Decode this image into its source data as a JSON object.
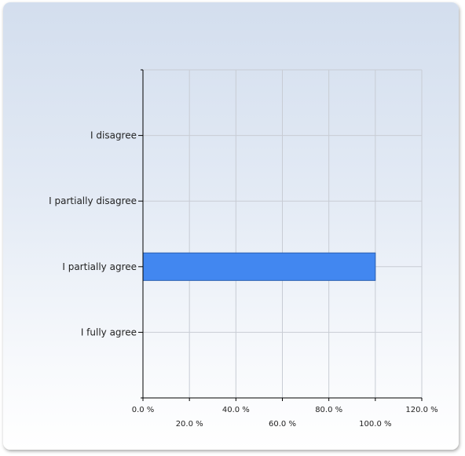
{
  "colors": {
    "bar": "#4287f0",
    "bar_stroke": "#2b5fb0",
    "grid": "#c8ccd4",
    "axis": "#000000"
  },
  "chart_data": {
    "type": "bar",
    "orientation": "horizontal",
    "categories": [
      "I disagree",
      "I partially disagree",
      "I partially agree",
      "I fully agree"
    ],
    "values": [
      0,
      0,
      100,
      0
    ],
    "x_ticks": [
      0,
      20,
      40,
      60,
      80,
      100,
      120
    ],
    "x_tick_labels": [
      "0.0 %",
      "20.0 %",
      "40.0 %",
      "60.0 %",
      "80.0 %",
      "100.0 %",
      "120.0 %"
    ],
    "xlim": [
      0,
      120
    ],
    "grid": true,
    "legend": "none",
    "title": "",
    "xlabel": "",
    "ylabel": ""
  }
}
